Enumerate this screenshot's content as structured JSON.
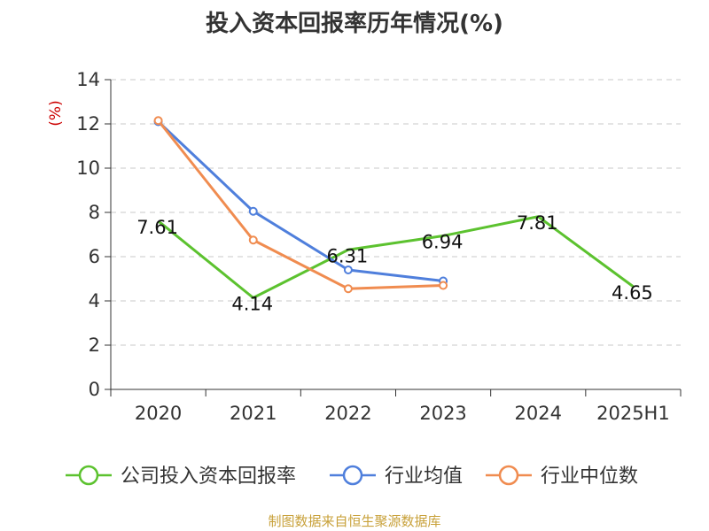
{
  "chart_data": {
    "type": "line",
    "title": "投入资本回报率历年情况(%)",
    "ylabel": "(%)",
    "xlabel": "",
    "categories": [
      "2020",
      "2021",
      "2022",
      "2023",
      "2024",
      "2025H1"
    ],
    "ylim": [
      0,
      14
    ],
    "yticks": [
      0,
      2,
      4,
      6,
      8,
      10,
      12,
      14
    ],
    "grid": true,
    "legend_position": "bottom",
    "series": [
      {
        "name": "公司投入资本回报率",
        "color": "#5cc22f",
        "values": [
          7.61,
          4.14,
          6.31,
          6.94,
          7.81,
          4.65
        ],
        "labels": [
          "7.61",
          "4.14",
          "6.31",
          "6.94",
          "7.81",
          "4.65"
        ],
        "markers": false
      },
      {
        "name": "行业均值",
        "color": "#4f7fdc",
        "values": [
          12.1,
          8.05,
          5.4,
          4.9,
          null,
          null
        ],
        "markers": true
      },
      {
        "name": "行业中位数",
        "color": "#f08c50",
        "values": [
          12.15,
          6.75,
          4.55,
          4.7,
          null,
          null
        ],
        "markers": true
      }
    ]
  },
  "footer": {
    "source": "制图数据来自恒生聚源数据库"
  }
}
